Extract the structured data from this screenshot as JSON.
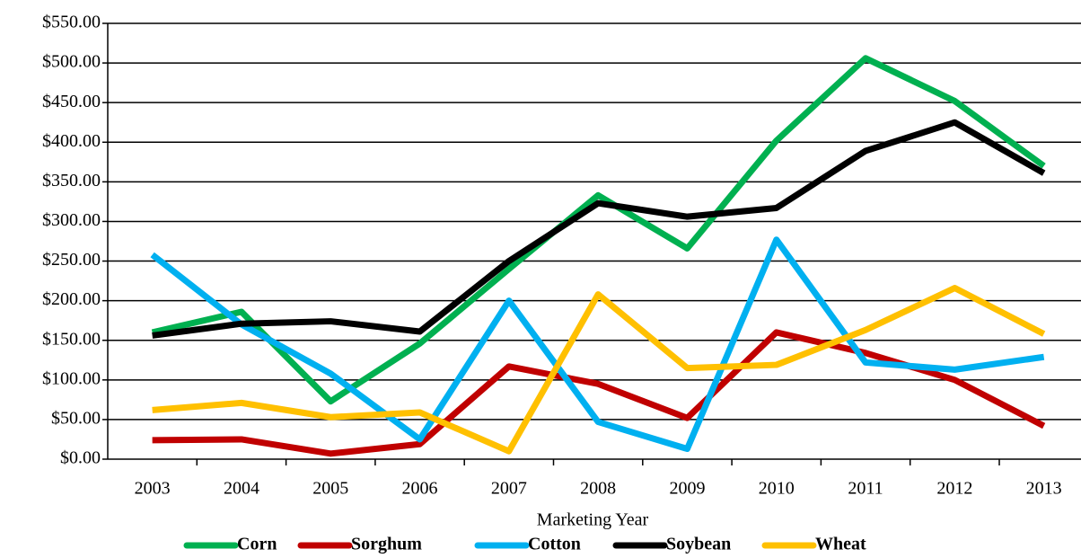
{
  "chart_data": {
    "type": "line",
    "x_label": "Marketing Year",
    "categories": [
      "2003",
      "2004",
      "2005",
      "2006",
      "2007",
      "2008",
      "2009",
      "2010",
      "2011",
      "2012",
      "2013"
    ],
    "series": [
      {
        "name": "Corn",
        "color": "#00b050",
        "values": [
          160,
          186,
          73,
          146,
          240,
          333,
          266,
          402,
          506,
          452,
          370
        ]
      },
      {
        "name": "Sorghum",
        "color": "#c00000",
        "values": [
          24,
          25,
          7,
          19,
          117,
          95,
          52,
          160,
          134,
          100,
          42
        ]
      },
      {
        "name": "Cotton",
        "color": "#00b0f0",
        "values": [
          258,
          170,
          108,
          25,
          200,
          47,
          13,
          277,
          122,
          113,
          129
        ]
      },
      {
        "name": "Soybean",
        "color": "#000000",
        "values": [
          156,
          171,
          174,
          161,
          250,
          323,
          306,
          317,
          389,
          425,
          361
        ]
      },
      {
        "name": "Wheat",
        "color": "#ffc000",
        "values": [
          62,
          71,
          53,
          59,
          10,
          208,
          115,
          119,
          163,
          216,
          158
        ]
      }
    ],
    "ylim": [
      0,
      550
    ],
    "yticks": [
      {
        "value": 0,
        "label": "$0.00"
      },
      {
        "value": 50,
        "label": "$50.00"
      },
      {
        "value": 100,
        "label": "$100.00"
      },
      {
        "value": 150,
        "label": "$150.00"
      },
      {
        "value": 200,
        "label": "$200.00"
      },
      {
        "value": 250,
        "label": "$250.00"
      },
      {
        "value": 300,
        "label": "$300.00"
      },
      {
        "value": 350,
        "label": "$350.00"
      },
      {
        "value": 400,
        "label": "$400.00"
      },
      {
        "value": 450,
        "label": "$450.00"
      },
      {
        "value": 500,
        "label": "$500.00"
      },
      {
        "value": 550,
        "label": "$550.00"
      }
    ],
    "grid": true,
    "legend": "bottom"
  }
}
